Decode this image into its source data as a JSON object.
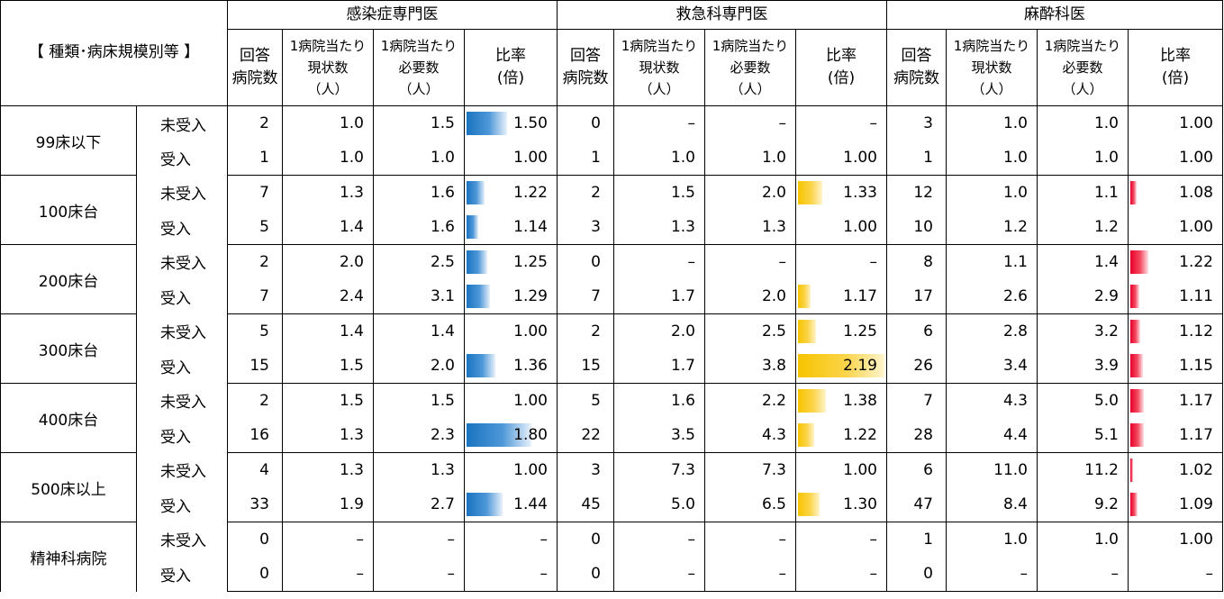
{
  "header": {
    "row_label": "【 種類･病床規模別等 】",
    "groups": [
      "感染症専門医",
      "救急科専門医",
      "麻酔科医"
    ],
    "col_count": [
      "回答",
      "病院数"
    ],
    "col_current": [
      "1病院当たり",
      "現状数",
      "（人）"
    ],
    "col_needed": [
      "1病院当たり",
      "必要数",
      "（人）"
    ],
    "col_ratio": [
      "比率",
      "(倍)"
    ]
  },
  "colors": {
    "infection_bar": "#1a74c0",
    "emergency_bar": "#f7c400",
    "anesthesia_bar": "#e8002a"
  },
  "rows": [
    {
      "size": "99床以下",
      "type": "未受入",
      "inf": [
        "2",
        "1.0",
        "1.5",
        "1.50",
        1.5
      ],
      "em": [
        "0",
        "–",
        "–",
        "–",
        null
      ],
      "an": [
        "3",
        "1.0",
        "1.0",
        "1.00",
        1.0
      ]
    },
    {
      "size": "",
      "type": "受入",
      "inf": [
        "1",
        "1.0",
        "1.0",
        "1.00",
        1.0
      ],
      "em": [
        "1",
        "1.0",
        "1.0",
        "1.00",
        1.0
      ],
      "an": [
        "1",
        "1.0",
        "1.0",
        "1.00",
        1.0
      ]
    },
    {
      "size": "100床台",
      "type": "未受入",
      "inf": [
        "7",
        "1.3",
        "1.6",
        "1.22",
        1.22
      ],
      "em": [
        "2",
        "1.5",
        "2.0",
        "1.33",
        1.33
      ],
      "an": [
        "12",
        "1.0",
        "1.1",
        "1.08",
        1.08
      ]
    },
    {
      "size": "",
      "type": "受入",
      "inf": [
        "5",
        "1.4",
        "1.6",
        "1.14",
        1.14
      ],
      "em": [
        "3",
        "1.3",
        "1.3",
        "1.00",
        1.0
      ],
      "an": [
        "10",
        "1.2",
        "1.2",
        "1.00",
        1.0
      ]
    },
    {
      "size": "200床台",
      "type": "未受入",
      "inf": [
        "2",
        "2.0",
        "2.5",
        "1.25",
        1.25
      ],
      "em": [
        "0",
        "–",
        "–",
        "–",
        null
      ],
      "an": [
        "8",
        "1.1",
        "1.4",
        "1.22",
        1.22
      ]
    },
    {
      "size": "",
      "type": "受入",
      "inf": [
        "7",
        "2.4",
        "3.1",
        "1.29",
        1.29
      ],
      "em": [
        "7",
        "1.7",
        "2.0",
        "1.17",
        1.17
      ],
      "an": [
        "17",
        "2.6",
        "2.9",
        "1.11",
        1.11
      ]
    },
    {
      "size": "300床台",
      "type": "未受入",
      "inf": [
        "5",
        "1.4",
        "1.4",
        "1.00",
        1.0
      ],
      "em": [
        "2",
        "2.0",
        "2.5",
        "1.25",
        1.25
      ],
      "an": [
        "6",
        "2.8",
        "3.2",
        "1.12",
        1.12
      ]
    },
    {
      "size": "",
      "type": "受入",
      "inf": [
        "15",
        "1.5",
        "2.0",
        "1.36",
        1.36
      ],
      "em": [
        "15",
        "1.7",
        "3.8",
        "2.19",
        2.19
      ],
      "an": [
        "26",
        "3.4",
        "3.9",
        "1.15",
        1.15
      ]
    },
    {
      "size": "400床台",
      "type": "未受入",
      "inf": [
        "2",
        "1.5",
        "1.5",
        "1.00",
        1.0
      ],
      "em": [
        "5",
        "1.6",
        "2.2",
        "1.38",
        1.38
      ],
      "an": [
        "7",
        "4.3",
        "5.0",
        "1.17",
        1.17
      ]
    },
    {
      "size": "",
      "type": "受入",
      "inf": [
        "16",
        "1.3",
        "2.3",
        "1.80",
        1.8
      ],
      "em": [
        "22",
        "3.5",
        "4.3",
        "1.22",
        1.22
      ],
      "an": [
        "28",
        "4.4",
        "5.1",
        "1.17",
        1.17
      ]
    },
    {
      "size": "500床以上",
      "type": "未受入",
      "inf": [
        "4",
        "1.3",
        "1.3",
        "1.00",
        1.0
      ],
      "em": [
        "3",
        "7.3",
        "7.3",
        "1.00",
        1.0
      ],
      "an": [
        "6",
        "11.0",
        "11.2",
        "1.02",
        1.02
      ]
    },
    {
      "size": "",
      "type": "受入",
      "inf": [
        "33",
        "1.9",
        "2.7",
        "1.44",
        1.44
      ],
      "em": [
        "45",
        "5.0",
        "6.5",
        "1.30",
        1.3
      ],
      "an": [
        "47",
        "8.4",
        "9.2",
        "1.09",
        1.09
      ]
    },
    {
      "size": "精神科病院",
      "type": "未受入",
      "inf": [
        "0",
        "–",
        "–",
        "–",
        null
      ],
      "em": [
        "0",
        "–",
        "–",
        "–",
        null
      ],
      "an": [
        "1",
        "1.0",
        "1.0",
        "1.00",
        1.0
      ]
    },
    {
      "size": "",
      "type": "受入",
      "inf": [
        "0",
        "–",
        "–",
        "–",
        null
      ],
      "em": [
        "0",
        "–",
        "–",
        "–",
        null
      ],
      "an": [
        "0",
        "–",
        "–",
        "–",
        null
      ]
    }
  ]
}
